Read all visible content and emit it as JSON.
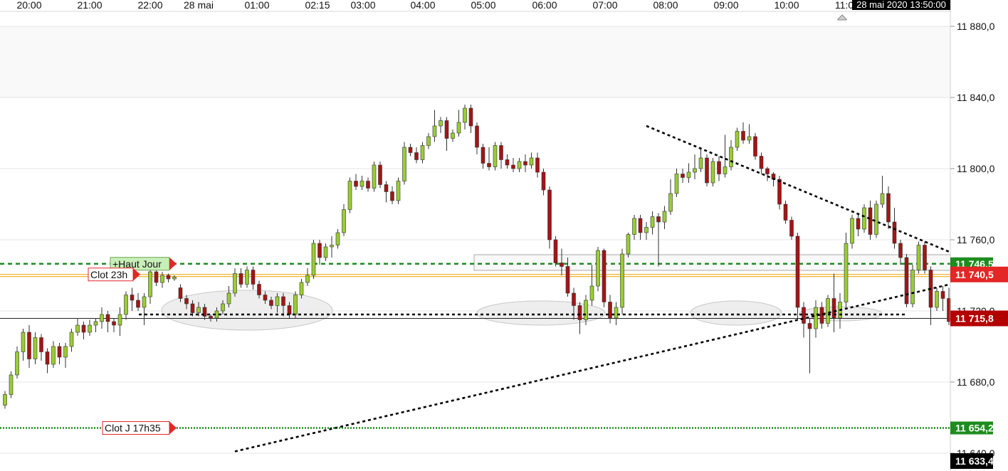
{
  "chart_data": {
    "type": "candlestick",
    "x_labels": [
      "20:00",
      "21:00",
      "22:00",
      "28 mai",
      "01:00",
      "02:15",
      "03:00",
      "04:00",
      "05:00",
      "06:00",
      "07:00",
      "08:00",
      "09:00",
      "10:00",
      "11:0"
    ],
    "y_ticks": [
      11640,
      11680,
      11720,
      11760,
      11800,
      11840,
      11880
    ],
    "y_tick_labels": [
      "11 640,0",
      "11 680,0",
      "11 720,0",
      "11 760,0",
      "11 800,0",
      "11 840,0",
      "11 880,0"
    ],
    "ylim": [
      11630.5,
      11887
    ],
    "cursor_time": "28 mai 2020 13:50:00",
    "price_tags": [
      {
        "name": "level-11746",
        "value": 11746.5,
        "text": "11 746,5",
        "color": "#1e8c1e"
      },
      {
        "name": "level-11740",
        "value": 11740.5,
        "text": "11 740,5",
        "color": "#e32626"
      },
      {
        "name": "level-11715",
        "value": 11715.8,
        "text": "11 715,8",
        "color": "#b30000"
      },
      {
        "name": "level-11654",
        "value": 11654.2,
        "text": "11 654,2",
        "color": "#1e8c1e"
      },
      {
        "name": "level-11633",
        "value": 11633.4,
        "text": "11 633,4",
        "color": "#000000"
      }
    ],
    "marker_labels": [
      {
        "text": "+Haut Jour",
        "value": 11746.5
      },
      {
        "text": "Clot 23h",
        "value": 11740.5
      },
      {
        "text": "Clot J 17h35",
        "value": 11654.2
      }
    ],
    "horizontal_lines": [
      {
        "name": "haut-jour-line",
        "value": 11746.5,
        "color": "#1e8c1e",
        "style": "dashed"
      },
      {
        "name": "clot-23h-line",
        "value": 11740.5,
        "color": "#e8a000",
        "style": "solid"
      },
      {
        "name": "last-price-line",
        "value": 11715.8,
        "color": "#222222",
        "style": "solid"
      },
      {
        "name": "clot-j-line",
        "value": 11654.2,
        "color": "#1e8c1e",
        "style": "dotted"
      }
    ],
    "trendlines": [
      {
        "name": "support-trendline",
        "x1": 330,
        "y1": 11641,
        "x2": 1335,
        "y2": 11735
      },
      {
        "name": "resistance-trendline",
        "x1": 908,
        "y1": 11824,
        "x2": 1335,
        "y2": 11753
      },
      {
        "name": "neckline",
        "x1": 195,
        "y1": 11718,
        "x2": 1275,
        "y2": 11718
      }
    ],
    "candles": [
      [
        11667,
        11673,
        11665,
        11675
      ],
      [
        11673,
        11684,
        11671,
        11686
      ],
      [
        11684,
        11697,
        11682,
        11700
      ],
      [
        11697,
        11708,
        11692,
        11710
      ],
      [
        11708,
        11693,
        11688,
        11712
      ],
      [
        11693,
        11705,
        11690,
        11708
      ],
      [
        11705,
        11697,
        11692,
        11707
      ],
      [
        11697,
        11690,
        11685,
        11699
      ],
      [
        11690,
        11700,
        11688,
        11703
      ],
      [
        11700,
        11694,
        11690,
        11702
      ],
      [
        11694,
        11700,
        11688,
        11702
      ],
      [
        11700,
        11708,
        11697,
        11710
      ],
      [
        11708,
        11712,
        11706,
        11716
      ],
      [
        11712,
        11708,
        11704,
        11714
      ],
      [
        11708,
        11712,
        11706,
        11715
      ],
      [
        11712,
        11714,
        11708,
        11716
      ],
      [
        11714,
        11718,
        11710,
        11722
      ],
      [
        11718,
        11714,
        11708,
        11720
      ],
      [
        11714,
        11712,
        11708,
        11716
      ],
      [
        11712,
        11718,
        11706,
        11722
      ],
      [
        11718,
        11729,
        11715,
        11731
      ],
      [
        11729,
        11726,
        11720,
        11733
      ],
      [
        11726,
        11722,
        11720,
        11730
      ],
      [
        11722,
        11728,
        11712,
        11730
      ],
      [
        11728,
        11742,
        11724,
        11745
      ],
      [
        11742,
        11736,
        11734,
        11746
      ],
      [
        11736,
        11740,
        11733,
        11742
      ],
      [
        11740,
        11738,
        11736,
        11741
      ],
      [
        11738,
        11739,
        11737,
        11740
      ],
      [
        11733,
        11727,
        11725,
        11735
      ],
      [
        11727,
        11724,
        11721,
        11729
      ],
      [
        11724,
        11719,
        11717,
        11726
      ],
      [
        11719,
        11722,
        11717,
        11725
      ],
      [
        11722,
        11717,
        11715,
        11724
      ],
      [
        11717,
        11716,
        11714,
        11718
      ],
      [
        11716,
        11720,
        11714,
        11722
      ],
      [
        11720,
        11724,
        11718,
        11726
      ],
      [
        11724,
        11730,
        11722,
        11734
      ],
      [
        11730,
        11741,
        11728,
        11744
      ],
      [
        11741,
        11735,
        11733,
        11744
      ],
      [
        11735,
        11743,
        11733,
        11745
      ],
      [
        11743,
        11735,
        11732,
        11745
      ],
      [
        11735,
        11729,
        11727,
        11737
      ],
      [
        11729,
        11726,
        11724,
        11731
      ],
      [
        11726,
        11723,
        11721,
        11728
      ],
      [
        11723,
        11728,
        11719,
        11730
      ],
      [
        11728,
        11723,
        11717,
        11730
      ],
      [
        11723,
        11718,
        11716,
        11725
      ],
      [
        11718,
        11729,
        11716,
        11731
      ],
      [
        11729,
        11736,
        11727,
        11738
      ],
      [
        11736,
        11740,
        11734,
        11744
      ],
      [
        11740,
        11758,
        11738,
        11760
      ],
      [
        11758,
        11750,
        11746,
        11760
      ],
      [
        11750,
        11756,
        11748,
        11758
      ],
      [
        11756,
        11757,
        11750,
        11762
      ],
      [
        11757,
        11764,
        11755,
        11766
      ],
      [
        11764,
        11777,
        11762,
        11780
      ],
      [
        11777,
        11793,
        11775,
        11795
      ],
      [
        11793,
        11790,
        11788,
        11797
      ],
      [
        11790,
        11793,
        11788,
        11796
      ],
      [
        11793,
        11789,
        11787,
        11795
      ],
      [
        11789,
        11802,
        11787,
        11804
      ],
      [
        11802,
        11791,
        11789,
        11804
      ],
      [
        11791,
        11787,
        11781,
        11793
      ],
      [
        11787,
        11782,
        11780,
        11790
      ],
      [
        11782,
        11793,
        11780,
        11795
      ],
      [
        11793,
        11812,
        11791,
        11815
      ],
      [
        11812,
        11809,
        11807,
        11814
      ],
      [
        11809,
        11805,
        11803,
        11812
      ],
      [
        11805,
        11813,
        11803,
        11815
      ],
      [
        11813,
        11818,
        11811,
        11820
      ],
      [
        11818,
        11824,
        11815,
        11833
      ],
      [
        11824,
        11827,
        11820,
        11829
      ],
      [
        11827,
        11817,
        11810,
        11829
      ],
      [
        11817,
        11820,
        11815,
        11822
      ],
      [
        11820,
        11826,
        11818,
        11833
      ],
      [
        11826,
        11834,
        11822,
        11836
      ],
      [
        11834,
        11824,
        11820,
        11836
      ],
      [
        11824,
        11812,
        11808,
        11826
      ],
      [
        11812,
        11803,
        11800,
        11814
      ],
      [
        11803,
        11801,
        11799,
        11812
      ],
      [
        11801,
        11813,
        11799,
        11815
      ],
      [
        11813,
        11805,
        11800,
        11815
      ],
      [
        11805,
        11802,
        11800,
        11808
      ],
      [
        11802,
        11800,
        11798,
        11806
      ],
      [
        11800,
        11804,
        11798,
        11806
      ],
      [
        11804,
        11802,
        11798,
        11808
      ],
      [
        11802,
        11806,
        11800,
        11809
      ],
      [
        11806,
        11798,
        11795,
        11809
      ],
      [
        11798,
        11788,
        11785,
        11800
      ],
      [
        11788,
        11760,
        11755,
        11790
      ],
      [
        11760,
        11747,
        11745,
        11762
      ],
      [
        11747,
        11745,
        11740,
        11755
      ],
      [
        11745,
        11730,
        11728,
        11750
      ],
      [
        11730,
        11723,
        11715,
        11733
      ],
      [
        11723,
        11715,
        11707,
        11725
      ],
      [
        11715,
        11726,
        11712,
        11729
      ],
      [
        11726,
        11734,
        11723,
        11746
      ],
      [
        11734,
        11754,
        11731,
        11756
      ],
      [
        11754,
        11725,
        11722,
        11755
      ],
      [
        11725,
        11716,
        11713,
        11729
      ],
      [
        11716,
        11722,
        11712,
        11725
      ],
      [
        11722,
        11752,
        11718,
        11755
      ],
      [
        11752,
        11763,
        11750,
        11764
      ],
      [
        11763,
        11772,
        11760,
        11774
      ],
      [
        11772,
        11764,
        11760,
        11774
      ],
      [
        11764,
        11767,
        11760,
        11770
      ],
      [
        11767,
        11773,
        11763,
        11776
      ],
      [
        11773,
        11770,
        11745,
        11775
      ],
      [
        11770,
        11776,
        11766,
        11779
      ],
      [
        11776,
        11786,
        11774,
        11794
      ],
      [
        11786,
        11797,
        11784,
        11800
      ],
      [
        11797,
        11795,
        11792,
        11800
      ],
      [
        11795,
        11798,
        11792,
        11803
      ],
      [
        11798,
        11800,
        11794,
        11808
      ],
      [
        11800,
        11806,
        11798,
        11812
      ],
      [
        11806,
        11792,
        11790,
        11808
      ],
      [
        11792,
        11804,
        11790,
        11806
      ],
      [
        11804,
        11797,
        11793,
        11807
      ],
      [
        11797,
        11801,
        11795,
        11819
      ],
      [
        11801,
        11812,
        11799,
        11816
      ],
      [
        11812,
        11821,
        11810,
        11823
      ],
      [
        11821,
        11816,
        11814,
        11826
      ],
      [
        11816,
        11818,
        11814,
        11825
      ],
      [
        11818,
        11807,
        11805,
        11820
      ],
      [
        11807,
        11800,
        11797,
        11809
      ],
      [
        11800,
        11797,
        11793,
        11801
      ],
      [
        11797,
        11794,
        11790,
        11798
      ],
      [
        11794,
        11780,
        11777,
        11796
      ],
      [
        11780,
        11771,
        11769,
        11782
      ],
      [
        11771,
        11762,
        11760,
        11773
      ],
      [
        11762,
        11722,
        11715,
        11764
      ],
      [
        11722,
        11713,
        11705,
        11725
      ],
      [
        11713,
        11710,
        11685,
        11716
      ],
      [
        11710,
        11722,
        11705,
        11726
      ],
      [
        11722,
        11713,
        11710,
        11725
      ],
      [
        11713,
        11727,
        11711,
        11729
      ],
      [
        11727,
        11716,
        11708,
        11741
      ],
      [
        11716,
        11725,
        11710,
        11730
      ],
      [
        11725,
        11758,
        11722,
        11764
      ],
      [
        11758,
        11772,
        11755,
        11774
      ],
      [
        11772,
        11766,
        11762,
        11775
      ],
      [
        11766,
        11778,
        11764,
        11780
      ],
      [
        11778,
        11763,
        11760,
        11782
      ],
      [
        11763,
        11780,
        11761,
        11782
      ],
      [
        11780,
        11786,
        11778,
        11796
      ],
      [
        11786,
        11770,
        11766,
        11790
      ],
      [
        11770,
        11758,
        11755,
        11778
      ],
      [
        11758,
        11750,
        11746,
        11760
      ],
      [
        11750,
        11724,
        11722,
        11752
      ],
      [
        11724,
        11743,
        11722,
        11746
      ],
      [
        11743,
        11757,
        11741,
        11759
      ],
      [
        11757,
        11743,
        11741,
        11759
      ],
      [
        11743,
        11722,
        11712,
        11745
      ],
      [
        11722,
        11731,
        11720,
        11733
      ],
      [
        11731,
        11727,
        11720,
        11734
      ],
      [
        11727,
        11714,
        11712,
        11733
      ]
    ]
  }
}
